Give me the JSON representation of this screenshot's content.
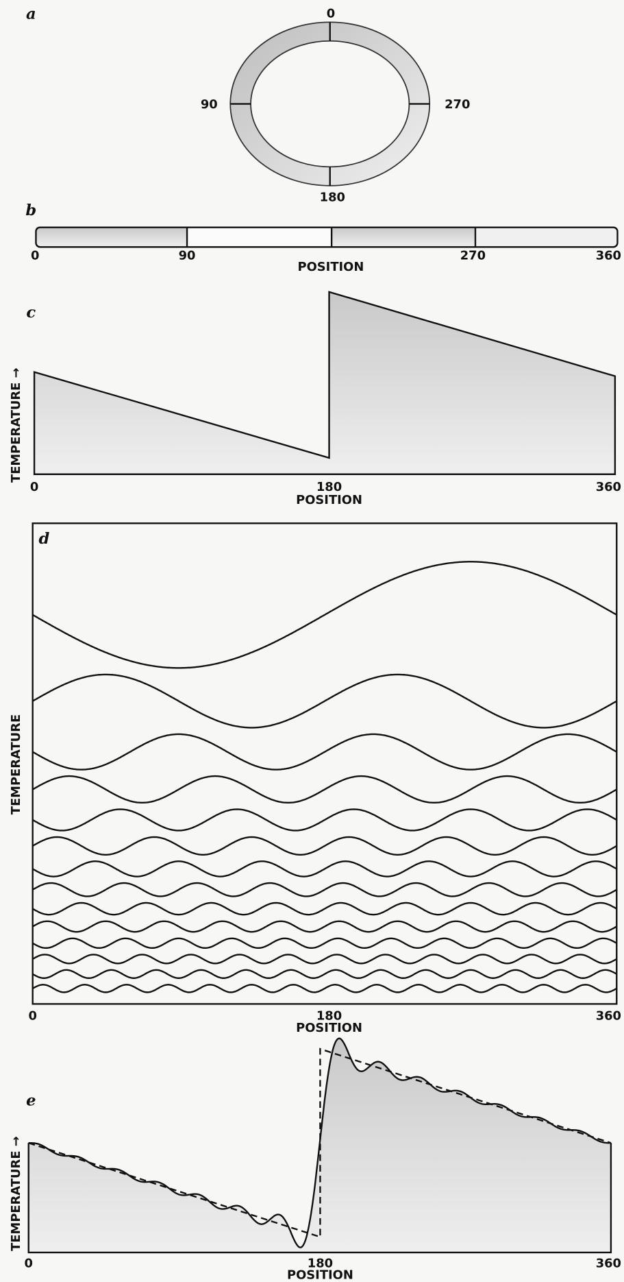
{
  "panels": [
    {
      "letter": "a",
      "labels": [
        "0",
        "90",
        "180",
        "270"
      ]
    },
    {
      "letter": "b",
      "ticks": [
        "0",
        "90",
        "270",
        "360"
      ],
      "xlabel": "POSITION"
    },
    {
      "letter": "c",
      "ylabel": "TEMPERATURE →",
      "ticks": [
        "0",
        "180",
        "360"
      ],
      "xlabel": "POSITION"
    },
    {
      "letter": "d",
      "ylabel": "TEMPERATURE",
      "ticks": [
        "0",
        "180",
        "360"
      ],
      "xlabel": "POSITION"
    },
    {
      "letter": "e",
      "ylabel": "TEMPERATURE →",
      "ticks": [
        "0",
        "180",
        "360"
      ],
      "xlabel": "POSITION"
    }
  ]
}
